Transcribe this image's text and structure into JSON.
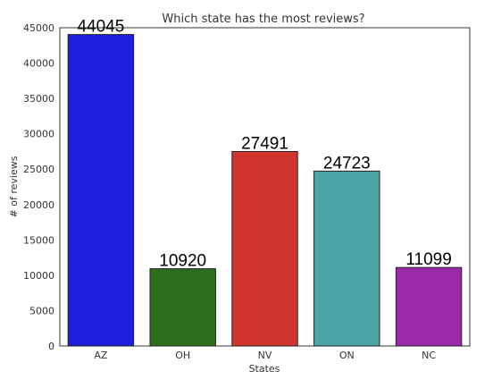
{
  "chart_data": {
    "type": "bar",
    "title": "Which state has the most reviews?",
    "xlabel": "States",
    "ylabel": "# of reviews",
    "categories": [
      "AZ",
      "OH",
      "NV",
      "ON",
      "NC"
    ],
    "values": [
      44045,
      10920,
      27491,
      24723,
      11099
    ],
    "data_labels": [
      "44045",
      "10920",
      "27491",
      "24723",
      "11099"
    ],
    "colors": [
      "#1f1fe0",
      "#2d6e1d",
      "#d1342c",
      "#4da5a5",
      "#9a2aa7"
    ],
    "ylim": [
      0,
      45000
    ],
    "yticks": [
      0,
      5000,
      10000,
      15000,
      20000,
      25000,
      30000,
      35000,
      40000,
      45000
    ],
    "ytick_labels": [
      "0",
      "5000",
      "10000",
      "15000",
      "20000",
      "25000",
      "30000",
      "35000",
      "40000",
      "45000"
    ],
    "grid": false,
    "legend": "none"
  }
}
